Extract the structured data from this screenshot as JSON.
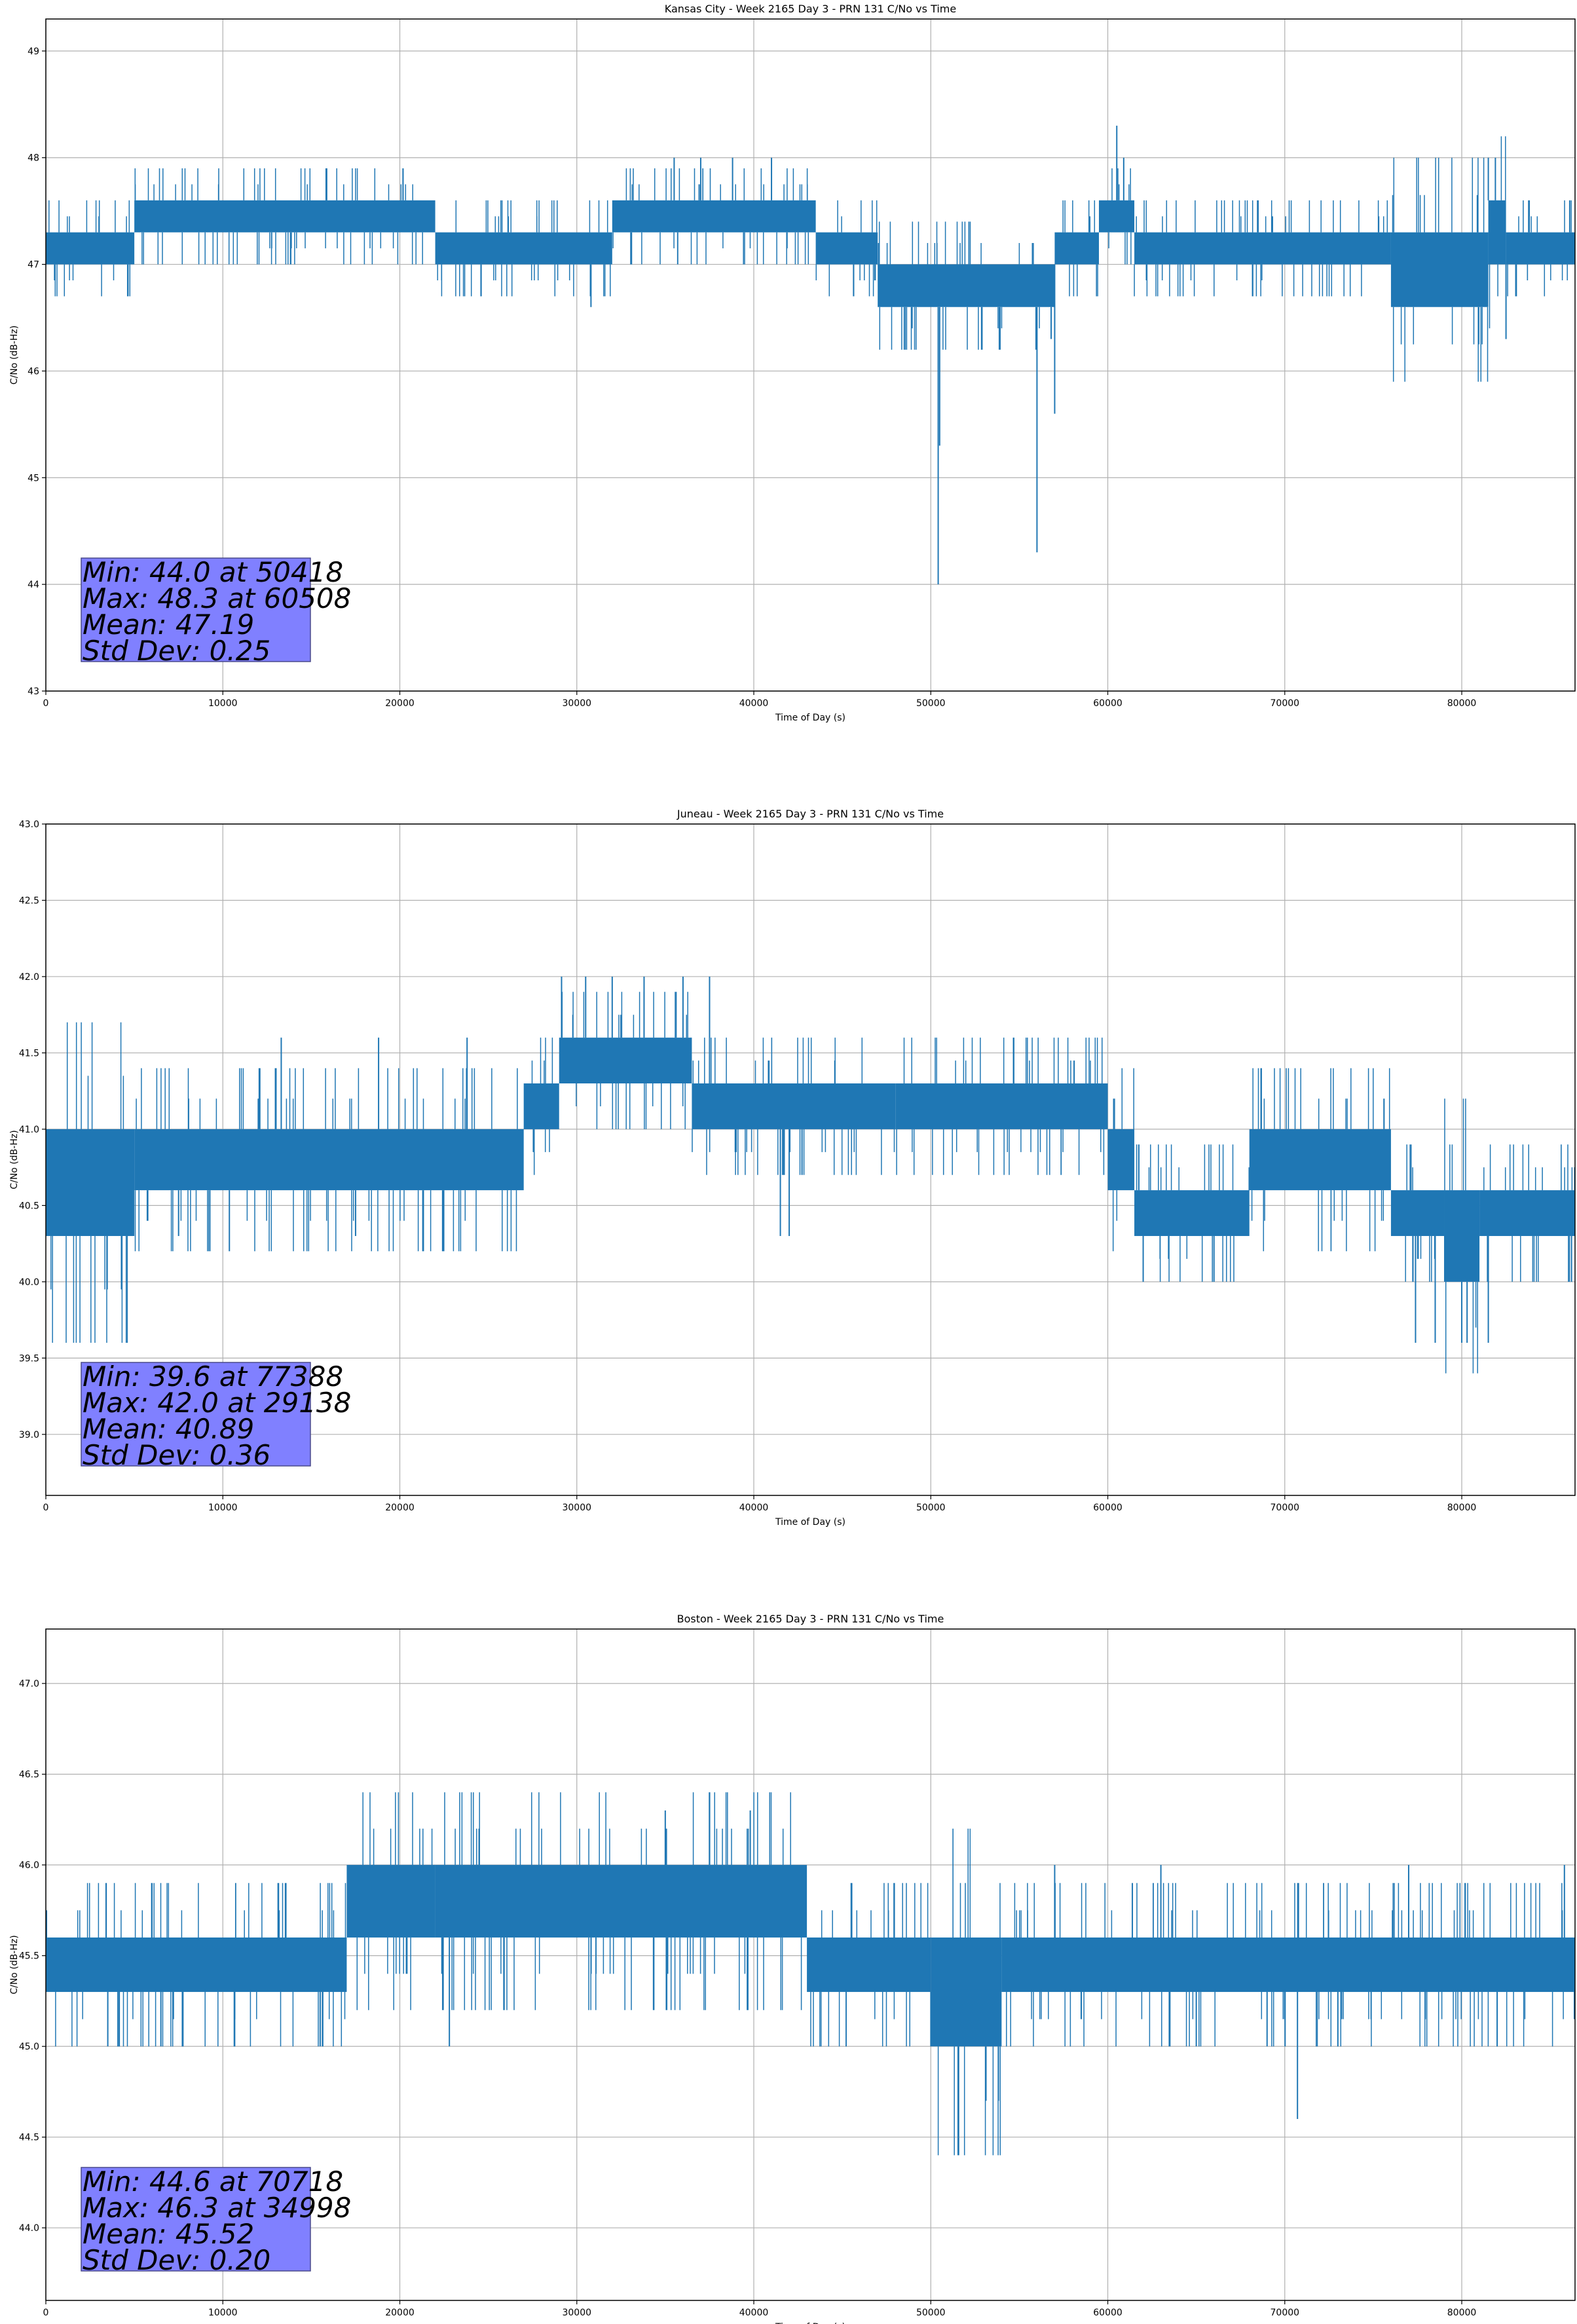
{
  "chart_data": [
    {
      "type": "line",
      "title": "Kansas City - Week 2165 Day 3 - PRN 131 C/No vs Time",
      "xlabel": "Time of Day (s)",
      "ylabel": "C/No (dB-Hz)",
      "xlim": [
        0,
        86400
      ],
      "ylim": [
        43,
        49.3
      ],
      "x_ticks": [
        0,
        10000,
        20000,
        30000,
        40000,
        50000,
        60000,
        70000,
        80000
      ],
      "y_ticks": [
        43,
        44,
        45,
        46,
        47,
        48,
        49
      ],
      "y_tick_labels": [
        "43",
        "44",
        "45",
        "46",
        "47",
        "48",
        "49"
      ],
      "grid": true,
      "line_color": "#1f77b4",
      "stats_box_color": "#8080ff",
      "segments": [
        {
          "x": [
            0,
            5000
          ],
          "band": [
            47.0,
            47.3
          ]
        },
        {
          "x": [
            5000,
            22000
          ],
          "band": [
            47.3,
            47.6
          ]
        },
        {
          "x": [
            22000,
            32000
          ],
          "band": [
            47.0,
            47.3
          ]
        },
        {
          "x": [
            32000,
            43500
          ],
          "band": [
            47.3,
            47.6
          ]
        },
        {
          "x": [
            43500,
            47000
          ],
          "band": [
            47.0,
            47.3
          ]
        },
        {
          "x": [
            47000,
            57000
          ],
          "band": [
            46.6,
            47.0
          ]
        },
        {
          "x": [
            57000,
            59500
          ],
          "band": [
            47.0,
            47.3
          ]
        },
        {
          "x": [
            59500,
            61500
          ],
          "band": [
            47.3,
            47.6
          ]
        },
        {
          "x": [
            61500,
            76000
          ],
          "band": [
            47.0,
            47.3
          ]
        },
        {
          "x": [
            76000,
            81500
          ],
          "band": [
            46.6,
            47.3
          ]
        },
        {
          "x": [
            81500,
            82500
          ],
          "band": [
            47.0,
            47.6
          ]
        },
        {
          "x": [
            82500,
            86400
          ],
          "band": [
            47.0,
            47.3
          ]
        }
      ],
      "spikes": [
        {
          "x": 30800,
          "y": 46.6
        },
        {
          "x": 35500,
          "y": 48.0
        },
        {
          "x": 37000,
          "y": 48.0
        },
        {
          "x": 38800,
          "y": 48.0
        },
        {
          "x": 41000,
          "y": 48.0
        },
        {
          "x": 50418,
          "y": 44.0
        },
        {
          "x": 50500,
          "y": 45.3
        },
        {
          "x": 56000,
          "y": 44.3
        },
        {
          "x": 57000,
          "y": 45.6
        },
        {
          "x": 56800,
          "y": 46.3
        },
        {
          "x": 60508,
          "y": 48.3
        },
        {
          "x": 60900,
          "y": 48.0
        },
        {
          "x": 81500,
          "y": 48.0
        },
        {
          "x": 81900,
          "y": 48.0
        },
        {
          "x": 82500,
          "y": 46.3
        },
        {
          "x": 86100,
          "y": 47.6
        }
      ],
      "stats": {
        "lines": [
          "Min: 44.0 at 50418",
          "Max: 48.3 at 60508",
          "Mean: 47.19",
          "Std Dev: 0.25"
        ],
        "min": 44.0,
        "min_at": 50418,
        "max": 48.3,
        "max_at": 60508,
        "mean": 47.19,
        "std": 0.25
      }
    },
    {
      "type": "line",
      "title": "Juneau - Week 2165 Day 3 - PRN 131 C/No vs Time",
      "xlabel": "Time of Day (s)",
      "ylabel": "C/No (dB-Hz)",
      "xlim": [
        0,
        86400
      ],
      "ylim": [
        38.6,
        43.0
      ],
      "x_ticks": [
        0,
        10000,
        20000,
        30000,
        40000,
        50000,
        60000,
        70000,
        80000
      ],
      "y_ticks": [
        39.0,
        39.5,
        40.0,
        40.5,
        41.0,
        41.5,
        42.0,
        42.5,
        43.0
      ],
      "y_tick_labels": [
        "39.0",
        "39.5",
        "40.0",
        "40.5",
        "41.0",
        "41.5",
        "42.0",
        "42.5",
        "43.0"
      ],
      "grid": true,
      "line_color": "#1f77b4",
      "stats_box_color": "#8080ff",
      "segments": [
        {
          "x": [
            0,
            5000
          ],
          "band": [
            40.3,
            41.0
          ]
        },
        {
          "x": [
            5000,
            27000
          ],
          "band": [
            40.6,
            41.0
          ]
        },
        {
          "x": [
            27000,
            29000
          ],
          "band": [
            41.0,
            41.3
          ]
        },
        {
          "x": [
            29000,
            36500
          ],
          "band": [
            41.3,
            41.6
          ]
        },
        {
          "x": [
            36500,
            48000
          ],
          "band": [
            41.0,
            41.3
          ]
        },
        {
          "x": [
            48000,
            60000
          ],
          "band": [
            41.0,
            41.3
          ]
        },
        {
          "x": [
            60000,
            61500
          ],
          "band": [
            40.6,
            41.0
          ]
        },
        {
          "x": [
            61500,
            68000
          ],
          "band": [
            40.3,
            40.6
          ]
        },
        {
          "x": [
            68000,
            76000
          ],
          "band": [
            40.6,
            41.0
          ]
        },
        {
          "x": [
            76000,
            79000
          ],
          "band": [
            40.3,
            40.6
          ]
        },
        {
          "x": [
            79000,
            81000
          ],
          "band": [
            40.0,
            40.6
          ]
        },
        {
          "x": [
            81000,
            86400
          ],
          "band": [
            40.3,
            40.6
          ]
        }
      ],
      "spikes": [
        {
          "x": 7500,
          "y": 40.3
        },
        {
          "x": 13300,
          "y": 41.6
        },
        {
          "x": 17500,
          "y": 40.3
        },
        {
          "x": 18800,
          "y": 41.6
        },
        {
          "x": 23800,
          "y": 41.6
        },
        {
          "x": 29138,
          "y": 42.0
        },
        {
          "x": 30500,
          "y": 42.0
        },
        {
          "x": 32000,
          "y": 42.0
        },
        {
          "x": 33800,
          "y": 42.0
        },
        {
          "x": 36000,
          "y": 42.0
        },
        {
          "x": 37500,
          "y": 42.0
        },
        {
          "x": 41500,
          "y": 40.3
        },
        {
          "x": 42000,
          "y": 40.3
        },
        {
          "x": 62000,
          "y": 40.0
        },
        {
          "x": 66000,
          "y": 40.0
        },
        {
          "x": 77388,
          "y": 39.6
        },
        {
          "x": 78500,
          "y": 39.6
        },
        {
          "x": 80000,
          "y": 39.6
        },
        {
          "x": 80300,
          "y": 39.6
        },
        {
          "x": 81500,
          "y": 39.6
        },
        {
          "x": 86200,
          "y": 40.0
        }
      ],
      "stats": {
        "lines": [
          "Min: 39.6 at 77388",
          "Max: 42.0 at 29138",
          "Mean: 40.89",
          "Std Dev: 0.36"
        ],
        "min": 39.6,
        "min_at": 77388,
        "max": 42.0,
        "max_at": 29138,
        "mean": 40.89,
        "std": 0.36
      }
    },
    {
      "type": "line",
      "title": "Boston - Week 2165 Day 3 - PRN 131 C/No vs Time",
      "xlabel": "Time of Day (s)",
      "ylabel": "C/No (dB-Hz)",
      "xlim": [
        0,
        86400
      ],
      "ylim": [
        43.6,
        47.3
      ],
      "x_ticks": [
        0,
        10000,
        20000,
        30000,
        40000,
        50000,
        60000,
        70000,
        80000
      ],
      "y_ticks": [
        44.0,
        44.5,
        45.0,
        45.5,
        46.0,
        46.5,
        47.0
      ],
      "y_tick_labels": [
        "44.0",
        "44.5",
        "45.0",
        "45.5",
        "46.0",
        "46.5",
        "47.0"
      ],
      "grid": true,
      "line_color": "#1f77b4",
      "stats_box_color": "#8080ff",
      "segments": [
        {
          "x": [
            0,
            17000
          ],
          "band": [
            45.3,
            45.6
          ]
        },
        {
          "x": [
            17000,
            22000
          ],
          "band": [
            45.6,
            46.0
          ]
        },
        {
          "x": [
            22000,
            43000
          ],
          "band": [
            45.6,
            46.0
          ]
        },
        {
          "x": [
            43000,
            50000
          ],
          "band": [
            45.3,
            45.6
          ]
        },
        {
          "x": [
            50000,
            54000
          ],
          "band": [
            45.0,
            45.6
          ]
        },
        {
          "x": [
            54000,
            86400
          ],
          "band": [
            45.3,
            45.6
          ]
        }
      ],
      "spikes": [
        {
          "x": 3500,
          "y": 45.0
        },
        {
          "x": 6500,
          "y": 45.0
        },
        {
          "x": 15500,
          "y": 45.0
        },
        {
          "x": 22800,
          "y": 45.0
        },
        {
          "x": 34998,
          "y": 46.3
        },
        {
          "x": 39800,
          "y": 46.3
        },
        {
          "x": 57000,
          "y": 46.0
        },
        {
          "x": 63000,
          "y": 46.0
        },
        {
          "x": 65000,
          "y": 45.0
        },
        {
          "x": 69000,
          "y": 45.0
        },
        {
          "x": 70718,
          "y": 44.6
        },
        {
          "x": 73000,
          "y": 45.0
        },
        {
          "x": 77000,
          "y": 46.0
        },
        {
          "x": 82000,
          "y": 45.0
        },
        {
          "x": 85800,
          "y": 46.0
        }
      ],
      "stats": {
        "lines": [
          "Min: 44.6 at 70718",
          "Max: 46.3 at 34998",
          "Mean: 45.52",
          "Std Dev: 0.20"
        ],
        "min": 44.6,
        "min_at": 70718,
        "max": 46.3,
        "max_at": 34998,
        "mean": 45.52,
        "std": 0.2
      }
    }
  ]
}
